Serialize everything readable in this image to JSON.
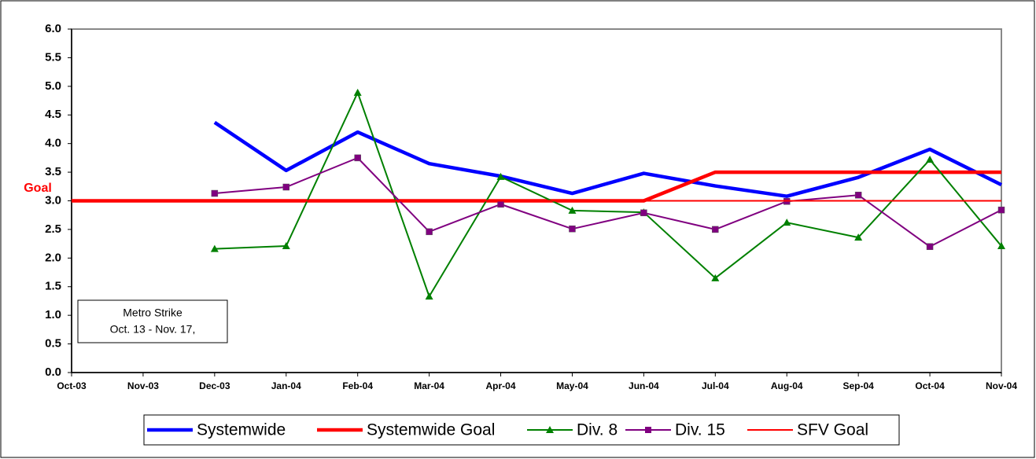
{
  "chart_data": {
    "type": "line",
    "categories": [
      "Oct-03",
      "Nov-03",
      "Dec-03",
      "Jan-04",
      "Feb-04",
      "Mar-04",
      "Apr-04",
      "May-04",
      "Jun-04",
      "Jul-04",
      "Aug-04",
      "Sep-04",
      "Oct-04",
      "Nov-04"
    ],
    "series": [
      {
        "name": "Systemwide",
        "color": "#0000ff",
        "marker": "none",
        "values": [
          null,
          null,
          4.37,
          3.53,
          4.2,
          3.65,
          3.43,
          3.13,
          3.48,
          3.26,
          3.08,
          3.41,
          3.9,
          3.28
        ]
      },
      {
        "name": "Systemwide Goal",
        "color": "#ff0000",
        "marker": "none",
        "values": [
          3.0,
          3.0,
          3.0,
          3.0,
          3.0,
          3.0,
          3.0,
          3.0,
          3.0,
          3.5,
          3.5,
          3.5,
          3.5,
          3.5
        ]
      },
      {
        "name": "Div. 8",
        "color": "#008000",
        "marker": "triangle",
        "values": [
          null,
          null,
          2.16,
          2.21,
          4.89,
          1.33,
          3.42,
          2.83,
          2.8,
          1.65,
          2.62,
          2.36,
          3.72,
          2.21
        ]
      },
      {
        "name": "Div. 15",
        "color": "#800080",
        "marker": "square",
        "values": [
          null,
          null,
          3.13,
          3.24,
          3.75,
          2.46,
          2.94,
          2.51,
          2.79,
          2.5,
          2.99,
          3.1,
          2.2,
          2.84
        ]
      },
      {
        "name": "SFV Goal",
        "color": "#ff0000",
        "marker": "none",
        "values": [
          3.0,
          3.0,
          3.0,
          3.0,
          3.0,
          3.0,
          3.0,
          3.0,
          3.0,
          3.0,
          3.0,
          3.0,
          3.0,
          3.0
        ]
      }
    ],
    "ylim": [
      0,
      6
    ],
    "yticks": [
      {
        "value": 0,
        "label": "0.0"
      },
      0.5,
      {
        "value": 1,
        "label": "1.0"
      },
      1.5,
      {
        "value": 2,
        "label": "2.0"
      },
      2.5,
      {
        "value": 3,
        "label": "3.0"
      },
      3.5,
      {
        "value": 4,
        "label": "4.0"
      },
      4.5,
      {
        "value": 5,
        "label": "5.0"
      },
      5.5,
      {
        "value": 6,
        "label": "6.0"
      }
    ],
    "grid": false,
    "legend": "bottom",
    "annotations": {
      "goal_label": "Goal",
      "strike_note": [
        "Metro Strike",
        "Oct. 13 - Nov. 17,"
      ]
    }
  }
}
